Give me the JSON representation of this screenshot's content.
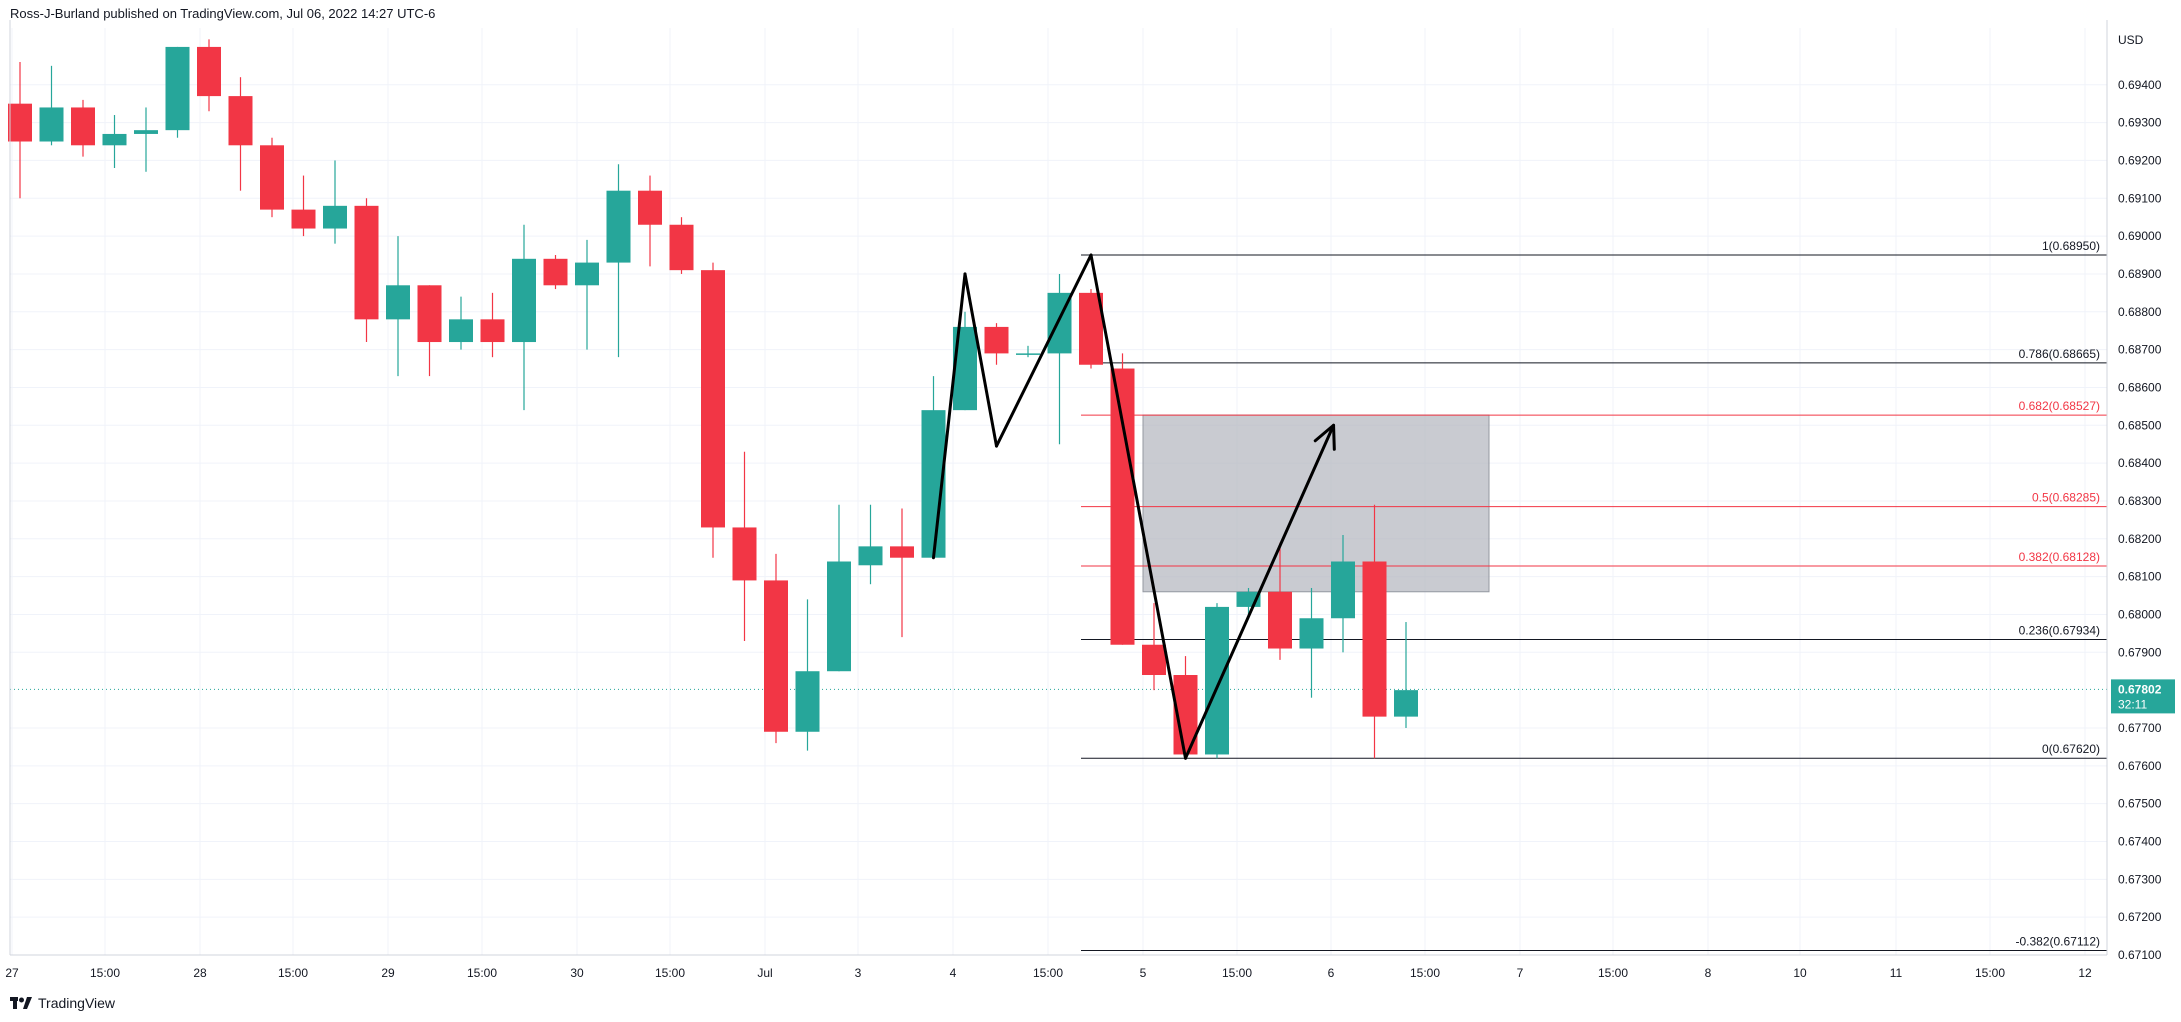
{
  "header": {
    "attribution": "Ross-J-Burland published on TradingView.com, Jul 06, 2022 14:27 UTC-6"
  },
  "footer": {
    "brand": "TradingView"
  },
  "price_scale": {
    "currency": "USD",
    "last_price": "0.67802",
    "countdown": "32:11",
    "last_color": "#26a69a"
  },
  "colors": {
    "up": "#26a69a",
    "down": "#f23645",
    "grid": "#f0f3fa",
    "fib_black": "#131722",
    "fib_red": "#f23645",
    "zone": "#b2b5be"
  },
  "chart_data": {
    "type": "candlestick",
    "symbol_currency": "USD",
    "ylim": [
      0.671,
      0.6955
    ],
    "y_ticks": [
      "0.69400",
      "0.69300",
      "0.69200",
      "0.69100",
      "0.69000",
      "0.68900",
      "0.68800",
      "0.68700",
      "0.68600",
      "0.68500",
      "0.68400",
      "0.68300",
      "0.68200",
      "0.68100",
      "0.68000",
      "0.67900",
      "0.67700",
      "0.67600",
      "0.67500",
      "0.67400",
      "0.67300",
      "0.67200",
      "0.67100"
    ],
    "x_ticks": [
      "27",
      "15:00",
      "28",
      "15:00",
      "29",
      "15:00",
      "30",
      "15:00",
      "Jul",
      "3",
      "4",
      "15:00",
      "5",
      "15:00",
      "6",
      "15:00",
      "7",
      "15:00",
      "8",
      "10",
      "11",
      "15:00",
      "12"
    ],
    "candles": [
      {
        "i": 0,
        "o": 0.6935,
        "h": 0.6946,
        "l": 0.691,
        "c": 0.6925
      },
      {
        "i": 1,
        "o": 0.6925,
        "h": 0.6945,
        "l": 0.6924,
        "c": 0.6934
      },
      {
        "i": 2,
        "o": 0.6934,
        "h": 0.6936,
        "l": 0.6921,
        "c": 0.6924
      },
      {
        "i": 3,
        "o": 0.6924,
        "h": 0.6932,
        "l": 0.6918,
        "c": 0.6927
      },
      {
        "i": 4,
        "o": 0.6927,
        "h": 0.6934,
        "l": 0.6917,
        "c": 0.6928
      },
      {
        "i": 5,
        "o": 0.6928,
        "h": 0.695,
        "l": 0.6926,
        "c": 0.695
      },
      {
        "i": 6,
        "o": 0.695,
        "h": 0.6952,
        "l": 0.6933,
        "c": 0.6937
      },
      {
        "i": 7,
        "o": 0.6937,
        "h": 0.6942,
        "l": 0.6912,
        "c": 0.6924
      },
      {
        "i": 8,
        "o": 0.6924,
        "h": 0.6926,
        "l": 0.6905,
        "c": 0.6907
      },
      {
        "i": 9,
        "o": 0.6907,
        "h": 0.6916,
        "l": 0.69,
        "c": 0.6902
      },
      {
        "i": 10,
        "o": 0.6902,
        "h": 0.692,
        "l": 0.6898,
        "c": 0.6908
      },
      {
        "i": 11,
        "o": 0.6908,
        "h": 0.691,
        "l": 0.6872,
        "c": 0.6878
      },
      {
        "i": 12,
        "o": 0.6878,
        "h": 0.69,
        "l": 0.6863,
        "c": 0.6887
      },
      {
        "i": 13,
        "o": 0.6887,
        "h": 0.6887,
        "l": 0.6863,
        "c": 0.6872
      },
      {
        "i": 14,
        "o": 0.6872,
        "h": 0.6884,
        "l": 0.687,
        "c": 0.6878
      },
      {
        "i": 15,
        "o": 0.6878,
        "h": 0.6885,
        "l": 0.6868,
        "c": 0.6872
      },
      {
        "i": 16,
        "o": 0.6872,
        "h": 0.6903,
        "l": 0.6854,
        "c": 0.6894
      },
      {
        "i": 17,
        "o": 0.6894,
        "h": 0.6895,
        "l": 0.6886,
        "c": 0.6887
      },
      {
        "i": 18,
        "o": 0.6887,
        "h": 0.6899,
        "l": 0.687,
        "c": 0.6893
      },
      {
        "i": 19,
        "o": 0.6893,
        "h": 0.6919,
        "l": 0.6868,
        "c": 0.6912
      },
      {
        "i": 20,
        "o": 0.6912,
        "h": 0.6916,
        "l": 0.6892,
        "c": 0.6903
      },
      {
        "i": 21,
        "o": 0.6903,
        "h": 0.6905,
        "l": 0.689,
        "c": 0.6891
      },
      {
        "i": 22,
        "o": 0.6891,
        "h": 0.6893,
        "l": 0.6815,
        "c": 0.6823
      },
      {
        "i": 23,
        "o": 0.6823,
        "h": 0.6843,
        "l": 0.6793,
        "c": 0.6809
      },
      {
        "i": 24,
        "o": 0.6809,
        "h": 0.6816,
        "l": 0.6766,
        "c": 0.6769
      },
      {
        "i": 25,
        "o": 0.6769,
        "h": 0.6804,
        "l": 0.6764,
        "c": 0.6785
      },
      {
        "i": 26,
        "o": 0.6785,
        "h": 0.6829,
        "l": 0.6785,
        "c": 0.6814
      },
      {
        "i": 27,
        "o": 0.6813,
        "h": 0.6829,
        "l": 0.6808,
        "c": 0.6818
      },
      {
        "i": 28,
        "o": 0.6818,
        "h": 0.6828,
        "l": 0.6794,
        "c": 0.6815
      },
      {
        "i": 29,
        "o": 0.6815,
        "h": 0.6863,
        "l": 0.6815,
        "c": 0.6854
      },
      {
        "i": 30,
        "o": 0.6854,
        "h": 0.688,
        "l": 0.6854,
        "c": 0.6876
      },
      {
        "i": 31,
        "o": 0.6876,
        "h": 0.6877,
        "l": 0.6866,
        "c": 0.6869
      },
      {
        "i": 32,
        "o": 0.6869,
        "h": 0.6871,
        "l": 0.6868,
        "c": 0.6869
      },
      {
        "i": 33,
        "o": 0.6869,
        "h": 0.689,
        "l": 0.6845,
        "c": 0.6885
      },
      {
        "i": 34,
        "o": 0.6885,
        "h": 0.6886,
        "l": 0.6865,
        "c": 0.6866
      },
      {
        "i": 35,
        "o": 0.6865,
        "h": 0.6869,
        "l": 0.6792,
        "c": 0.6792
      },
      {
        "i": 36,
        "o": 0.6792,
        "h": 0.6803,
        "l": 0.678,
        "c": 0.6784
      },
      {
        "i": 37,
        "o": 0.6784,
        "h": 0.6789,
        "l": 0.6762,
        "c": 0.6763
      },
      {
        "i": 38,
        "o": 0.6763,
        "h": 0.6803,
        "l": 0.6762,
        "c": 0.6802
      },
      {
        "i": 39,
        "o": 0.6802,
        "h": 0.6807,
        "l": 0.68,
        "c": 0.6806
      },
      {
        "i": 40,
        "o": 0.6806,
        "h": 0.6819,
        "l": 0.6788,
        "c": 0.6791
      },
      {
        "i": 41,
        "o": 0.6791,
        "h": 0.6807,
        "l": 0.6778,
        "c": 0.6799
      },
      {
        "i": 42,
        "o": 0.6799,
        "h": 0.6821,
        "l": 0.679,
        "c": 0.6814
      },
      {
        "i": 43,
        "o": 0.6814,
        "h": 0.6829,
        "l": 0.6762,
        "c": 0.6773
      },
      {
        "i": 44,
        "o": 0.6773,
        "h": 0.6798,
        "l": 0.677,
        "c": 0.678
      }
    ],
    "fibonacci": [
      {
        "label": "1(0.68950)",
        "level": 1,
        "price": 0.6895,
        "color": "black"
      },
      {
        "label": "0.786(0.68665)",
        "level": 0.786,
        "price": 0.68665,
        "color": "black"
      },
      {
        "label": "0.682(0.68527)",
        "level": 0.682,
        "price": 0.68527,
        "color": "red"
      },
      {
        "label": "0.5(0.68285)",
        "level": 0.5,
        "price": 0.68285,
        "color": "red"
      },
      {
        "label": "0.382(0.68128)",
        "level": 0.382,
        "price": 0.68128,
        "color": "red"
      },
      {
        "label": "0.236(0.67934)",
        "level": 0.236,
        "price": 0.67934,
        "color": "black"
      },
      {
        "label": "0(0.67620)",
        "level": 0,
        "price": 0.6762,
        "color": "black"
      },
      {
        "label": "-0.382(0.67112)",
        "level": -0.382,
        "price": 0.67112,
        "color": "black"
      }
    ],
    "zone": {
      "price_top": 0.68527,
      "price_bottom": 0.6806
    },
    "pattern_lines": [
      {
        "from": {
          "i": 29,
          "p": 0.6815
        },
        "to": {
          "i": 30,
          "p": 0.689
        }
      },
      {
        "from": {
          "i": 30,
          "p": 0.689
        },
        "to": {
          "i": 31,
          "p": 0.68445
        }
      },
      {
        "from": {
          "i": 31,
          "p": 0.68445
        },
        "to": {
          "i": 34,
          "p": 0.6895
        }
      },
      {
        "from": {
          "i": 34,
          "p": 0.6895
        },
        "to": {
          "i": 37,
          "p": 0.6762
        }
      }
    ],
    "projection_arrow": {
      "from": {
        "i": 37,
        "p": 0.6762
      },
      "to": {
        "i": 41.7,
        "p": 0.685
      }
    },
    "last_price": 0.67802
  }
}
